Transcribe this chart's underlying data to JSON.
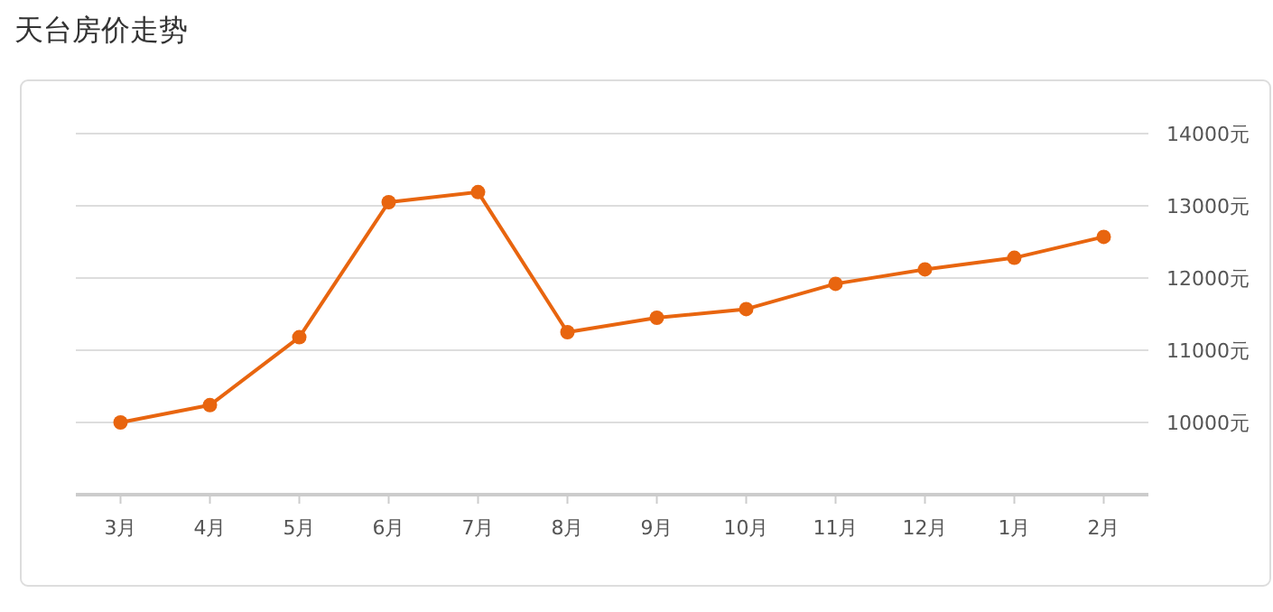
{
  "chart_data": {
    "type": "line",
    "title": "天台房价走势",
    "categories": [
      "3月",
      "4月",
      "5月",
      "6月",
      "7月",
      "8月",
      "9月",
      "10月",
      "11月",
      "12月",
      "1月",
      "2月"
    ],
    "series": [
      {
        "color": "#e8650f",
        "values": [
          10000,
          10240,
          11180,
          13050,
          13190,
          11250,
          11450,
          11570,
          11920,
          12120,
          12280,
          12570
        ]
      }
    ],
    "ylim": [
      9000,
      14000
    ],
    "yticks": [
      {
        "value": 10000,
        "label": "10000元"
      },
      {
        "value": 11000,
        "label": "11000元"
      },
      {
        "value": 12000,
        "label": "12000元"
      },
      {
        "value": 13000,
        "label": "13000元"
      },
      {
        "value": 14000,
        "label": "14000元"
      }
    ],
    "grid": "y",
    "marker": "circle",
    "line_style": "solid"
  }
}
